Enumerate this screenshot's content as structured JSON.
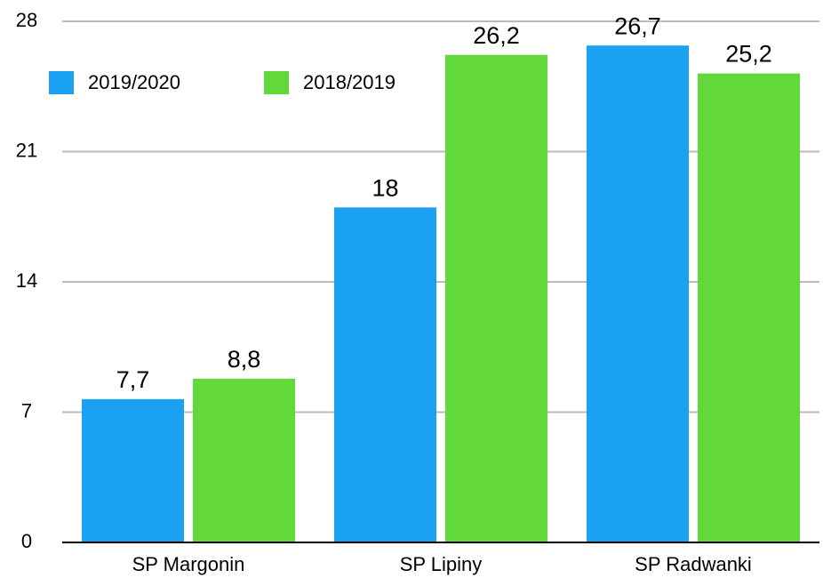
{
  "chart_data": {
    "type": "bar",
    "categories": [
      "SP Margonin",
      "SP Lipiny",
      "SP Radwanki"
    ],
    "series": [
      {
        "name": "2019/2020",
        "color": "#1ba1f2",
        "values": [
          7.7,
          18,
          26.7
        ],
        "value_labels": [
          "7,7",
          "18",
          "26,7"
        ]
      },
      {
        "name": "2018/2019",
        "color": "#63d83a",
        "values": [
          8.8,
          26.2,
          25.2
        ],
        "value_labels": [
          "8,8",
          "26,2",
          "25,2"
        ]
      }
    ],
    "ylim": [
      0,
      28
    ],
    "yticks": [
      0,
      7,
      14,
      21,
      28
    ],
    "grid": true,
    "legend": "top-left"
  }
}
